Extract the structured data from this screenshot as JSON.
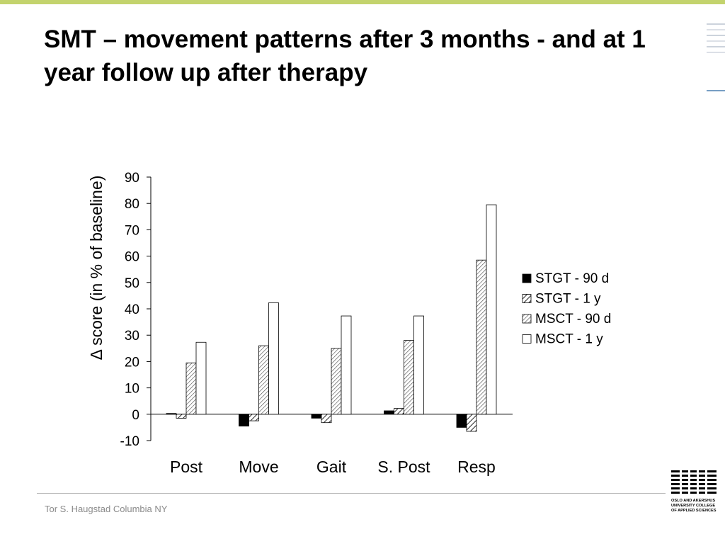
{
  "slide": {
    "title": "SMT – movement patterns after 3 months - and at 1 year follow up after therapy",
    "footer": "Tor S. Haugstad Columbia NY",
    "accent_color": "#c3d36d",
    "logo": {
      "name": "oslo-akershus-logo-icon",
      "lines": [
        "OSLO AND AKERSHUS",
        "UNIVERSITY COLLEGE",
        "OF APPLIED SCIENCES"
      ]
    }
  },
  "chart_data": {
    "type": "bar",
    "title": "",
    "xlabel": "",
    "ylabel": "Δ score (in % of baseline)",
    "ylim": [
      -10,
      90
    ],
    "yticks": [
      90,
      80,
      70,
      60,
      50,
      40,
      30,
      20,
      10,
      0,
      -10
    ],
    "categories": [
      "Post",
      "Move",
      "Gait",
      "S. Post",
      "Resp"
    ],
    "series": [
      {
        "name": "STGT - 90 d",
        "fill": "solid-black",
        "values": [
          0.3,
          -4.5,
          -1.5,
          1.3,
          -5
        ]
      },
      {
        "name": "STGT - 1 y",
        "fill": "hatch",
        "values": [
          -1.5,
          -2.5,
          -3.2,
          2.2,
          -6.5
        ]
      },
      {
        "name": "MSCT - 90 d",
        "fill": "hatch-fine",
        "values": [
          19.5,
          26,
          25,
          28,
          58.5
        ]
      },
      {
        "name": "MSCT - 1 y",
        "fill": "white",
        "values": [
          27.3,
          42.3,
          37.3,
          37.3,
          79.5
        ]
      }
    ],
    "legend_position": "right",
    "grid": false
  }
}
